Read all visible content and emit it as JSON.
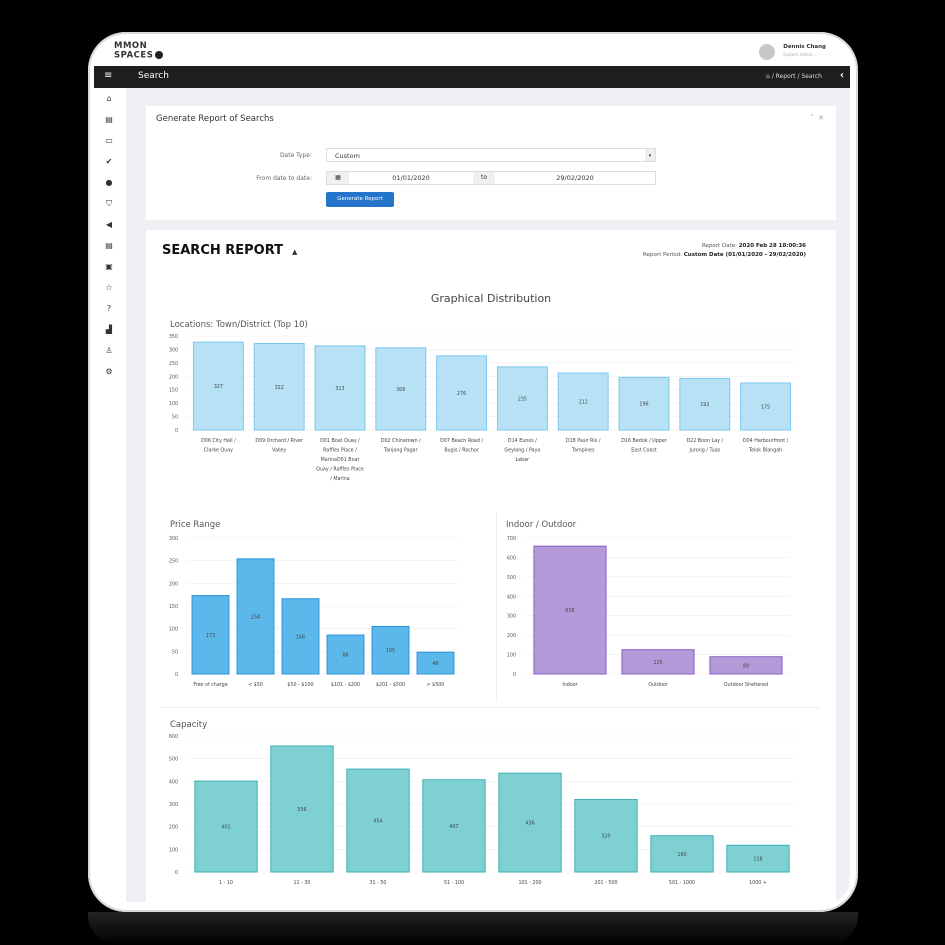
{
  "brand": {
    "logo_line1": "MMON",
    "logo_line2": "SPACES"
  },
  "user": {
    "name": "Dennis Chang",
    "role": "System Admin..."
  },
  "nav": {
    "title": "Search",
    "breadcrumb": [
      "Report",
      "Search"
    ]
  },
  "panel_generate": {
    "title": "Generate Report of Searchs",
    "date_type_label": "Date Type:",
    "date_type_value": "Custom",
    "range_label": "From date to date:",
    "from": "01/01/2020",
    "to_label": "to",
    "to": "29/02/2020",
    "button": "Generate Report"
  },
  "report": {
    "title": "SEARCH REPORT",
    "date_label": "Report Date:",
    "date_value": "2020 Feb 28 18:00:36",
    "period_label": "Report Period:",
    "period_value": "Custom Date (01/01/2020 - 29/02/2020)",
    "section_title": "Graphical Distribution"
  },
  "chart_data": [
    {
      "type": "bar",
      "title": "Locations: Town/District (Top 10)",
      "ylim": [
        0,
        350
      ],
      "yticks": [
        "0",
        "50",
        "100",
        "150",
        "200",
        "250",
        "300",
        "350"
      ],
      "categories": [
        [
          "D06 City Hall /",
          "Clarke Quay"
        ],
        [
          "D09 Orchard / River",
          "Valley"
        ],
        [
          "D01 Boat Quay /",
          "Raffles Place /",
          "MarinaD01 Boat",
          "Quay / Raffles Place",
          "/ Marina"
        ],
        [
          "D02 Chinatown /",
          "Tanjong Pagar"
        ],
        [
          "D07 Beach Road /",
          "Bugis / Rochor"
        ],
        [
          "D14 Eunos /",
          "Geylang / Paya",
          "Lebar"
        ],
        [
          "D18 Pasir Ris /",
          "Tampines"
        ],
        [
          "D16 Bedok / Upper",
          "East Coast"
        ],
        [
          "D22 Boon Lay /",
          "Jurong / Tuas"
        ],
        [
          "D04 Harbourfront /",
          "Telok Blangah"
        ]
      ],
      "values": [
        327,
        322,
        313,
        306,
        276,
        235,
        212,
        196,
        192,
        175
      ],
      "color": "#b7e2f6",
      "stroke": "#7cc6ee"
    },
    {
      "type": "bar",
      "title": "Price Range",
      "ylim": [
        0,
        300
      ],
      "yticks": [
        "0",
        "50",
        "100",
        "150",
        "200",
        "250",
        "300"
      ],
      "categories": [
        [
          "Free of charge"
        ],
        [
          "< $50"
        ],
        [
          "$50 - $100"
        ],
        [
          "$101 - $200"
        ],
        [
          "$201 - $500"
        ],
        [
          "> $500"
        ]
      ],
      "values": [
        173,
        254,
        166,
        86,
        105,
        48
      ],
      "color": "#5cb7ea",
      "stroke": "#2c95d6"
    },
    {
      "type": "bar",
      "title": "Indoor / Outdoor",
      "ylim": [
        0,
        700
      ],
      "yticks": [
        "0",
        "100",
        "200",
        "300",
        "400",
        "500",
        "600",
        "700"
      ],
      "categories": [
        [
          "Indoor"
        ],
        [
          "Outdoor"
        ],
        [
          "Outdoor Sheltered"
        ]
      ],
      "values": [
        658,
        125,
        89
      ],
      "color": "#b49ad9",
      "stroke": "#8a61be"
    },
    {
      "type": "bar",
      "title": "Capacity",
      "ylim": [
        0,
        600
      ],
      "yticks": [
        "0",
        "100",
        "200",
        "300",
        "400",
        "500",
        "600"
      ],
      "categories": [
        [
          "1 - 10"
        ],
        [
          "11 - 30"
        ],
        [
          "31 - 50"
        ],
        [
          "51 - 100"
        ],
        [
          "101 - 200"
        ],
        [
          "201 - 500"
        ],
        [
          "501 - 1000"
        ],
        [
          "1000 +"
        ]
      ],
      "values": [
        401,
        556,
        454,
        407,
        436,
        320,
        160,
        118
      ],
      "color": "#7fd0d3",
      "stroke": "#3fb0b5"
    }
  ],
  "icons": [
    "home-icon",
    "document-icon",
    "keyboard-icon",
    "check-icon",
    "info-icon",
    "shield-icon",
    "megaphone-icon",
    "file-icon",
    "image-icon",
    "star-icon",
    "question-icon",
    "area-chart-icon",
    "user-icon",
    "settings-icon"
  ]
}
